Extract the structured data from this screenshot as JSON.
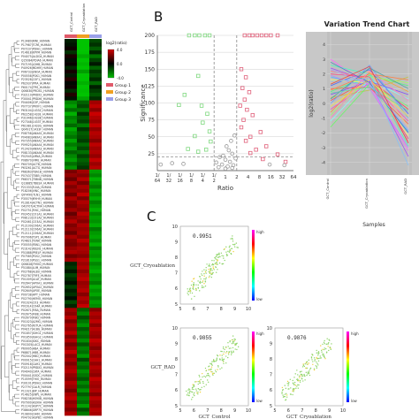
{
  "panel_labels": {
    "b": "B",
    "c": "C"
  },
  "heatmap": {
    "samples": [
      "GCT_Control",
      "GCT_Cryoablation",
      "GCT_RAD"
    ],
    "scale_title": "log2(ratio)",
    "scale_ticks": [
      "4.0",
      "0.0",
      "-4.0"
    ],
    "scale_colors": [
      "#d40000",
      "#000000",
      "#00c000"
    ],
    "groups": [
      {
        "label": "Group 1",
        "color": "#e05a6a"
      },
      {
        "label": "Group 2",
        "color": "#f0a020"
      },
      {
        "label": "Group 3",
        "color": "#9aa0e8"
      }
    ],
    "gene_labels": [
      "P13489|RINI_HUMAN",
      "P17987|TCPA_HUMAN",
      "P07237|PDIA1_HUMAN",
      "P14618|KPYM_HUMAN",
      "P04075|ALDOA_HUMAN",
      "Q15084|PDIA6_HUMAN",
      "P07195|LDHB_HUMAN",
      "P40926|MDHM_HUMAN",
      "P06733|ENOA_HUMAN",
      "P00558|PGK1_HUMAN",
      "P23528|COF1_HUMAN",
      "P62937|PPIA_HUMAN",
      "P60174|TPIS_HUMAN",
      "Q06830|PRDX1_HUMAN",
      "P32119|PRDX2_HUMAN",
      "P30041|PRDX6_HUMAN",
      "P04406|G3P_HUMAN",
      "P07737|PROF1_HUMAN",
      "P63104|1433Z_HUMAN",
      "P62258|1433E_HUMAN",
      "P31946|1433B_HUMAN",
      "P27348|1433T_HUMAN",
      "P61981|1433G_HUMAN",
      "Q04917|1433F_HUMAN",
      "P08758|ANXA5_HUMAN",
      "P04083|ANXA1_HUMAN",
      "P07355|ANXA2_HUMAN",
      "P09525|ANXA4_HUMAN",
      "P12429|ANXA3_HUMAN",
      "P08133|ANXA6_HUMAN",
      "P02545|LMNA_HUMAN",
      "P08670|VIME_HUMAN",
      "P60709|ACTB_HUMAN",
      "P63261|ACTG_HUMAN",
      "P68363|TBA1B_HUMAN",
      "P07437|TBB5_HUMAN",
      "P68371|TBB4B_HUMAN",
      "Q13885|TBB2A_HUMAN",
      "P21333|FLNA_HUMAN",
      "P18206|VINC_HUMAN",
      "Q9Y490|TLN1_HUMAN",
      "P35579|MYH9_HUMAN",
      "P12814|ACTN1_HUMAN",
      "O43707|ACTN4_HUMAN",
      "P02751|FINC_HUMAN",
      "P02452|CO1A1_HUMAN",
      "P08123|CO1A2_HUMAN",
      "P02461|CO3A1_HUMAN",
      "P12109|CO6A1_HUMAN",
      "P12110|CO6A2_HUMAN",
      "P12111|CO6A3_HUMAN",
      "P07996|TSP1_HUMAN",
      "P24821|TENA_HUMAN",
      "P35555|FBN1_HUMAN",
      "P23142|FBLN1_HUMAN",
      "P51888|PRELP_HUMAN",
      "P07585|PGS2_HUMAN",
      "P21810|PGS1_HUMAN",
      "Q06828|FMOD_HUMAN",
      "P51884|LUM_HUMAN",
      "P02768|ALBU_HUMAN",
      "P02787|TRFE_HUMAN",
      "P01009|A1AT_HUMAN",
      "P02647|APOA1_HUMAN",
      "P02652|APOA2_HUMAN",
      "P02649|APOE_HUMAN",
      "P00738|HPT_HUMAN",
      "P02790|HEMO_HUMAN",
      "P01024|CO3_HUMAN",
      "P0C0L4|CO4A_HUMAN",
      "P02671|FIBA_HUMAN",
      "P02675|FIBB_HUMAN",
      "P02679|FIBG_HUMAN",
      "P01023|A2MG_HUMAN",
      "P02765|FETUA_HUMAN",
      "P04217|A1BG_HUMAN",
      "P01857|IGHG1_HUMAN",
      "P01859|IGHG2_HUMAN",
      "P01834|IGKC_HUMAN",
      "P0CG05|LAC2_HUMAN",
      "P69905|HBA_HUMAN",
      "P68871|HBB_HUMAN",
      "P02042|HBD_HUMAN",
      "P00915|CAH1_HUMAN",
      "P00918|CAH2_HUMAN",
      "P32119|PRDX2_HUMAN",
      "P04040|CATA_HUMAN",
      "P00441|SODC_HUMAN",
      "P10599|THIO_HUMAN",
      "P30101|PDIA3_HUMAN",
      "P27797|CALR_HUMAN",
      "P11021|BIP_HUMAN",
      "P14625|ENPL_HUMAN",
      "P08238|HS90B_HUMAN",
      "P07900|HS90A_HUMAN",
      "P11142|HSP7C_HUMAN",
      "P38646|GRP75_HUMAN",
      "P10809|CH60_HUMAN",
      "P04792|HSPB1_HUMAN",
      "P02511|CRYAB_HUMAN"
    ],
    "matrix": [
      [
        -0.5,
        -3.6,
        -1.2
      ],
      [
        -0.3,
        -3.2,
        -0.8
      ],
      [
        0.2,
        -3.8,
        -1.5
      ],
      [
        -0.8,
        -3.4,
        -0.6
      ],
      [
        0.4,
        -2.8,
        -1.9
      ],
      [
        -0.2,
        -3.6,
        -1.1
      ],
      [
        0.1,
        -3.0,
        -0.4
      ],
      [
        -0.6,
        -3.9,
        -1.6
      ],
      [
        0.3,
        -2.6,
        -0.9
      ],
      [
        -0.4,
        -3.3,
        -1.3
      ],
      [
        0.6,
        -3.5,
        -0.7
      ],
      [
        -0.1,
        -2.9,
        -1.7
      ],
      [
        0.2,
        -3.7,
        -0.5
      ],
      [
        -0.7,
        -3.1,
        -1.0
      ],
      [
        0.5,
        -3.4,
        -1.4
      ],
      [
        -0.3,
        -2.7,
        -0.8
      ],
      [
        -2.2,
        -1.6,
        2.4
      ],
      [
        -2.6,
        -1.2,
        2.8
      ],
      [
        -1.8,
        -1.9,
        2.1
      ],
      [
        -2.9,
        -0.8,
        3.0
      ],
      [
        -2.1,
        -1.4,
        2.6
      ],
      [
        -2.4,
        -1.1,
        2.3
      ],
      [
        -1.7,
        -2.0,
        2.9
      ],
      [
        -2.8,
        -0.9,
        2.2
      ],
      [
        -2.3,
        -1.5,
        2.7
      ],
      [
        -1.9,
        -1.3,
        2.5
      ],
      [
        -2.7,
        -1.0,
        2.0
      ],
      [
        -2.0,
        -1.7,
        2.8
      ],
      [
        -2.5,
        -1.2,
        2.4
      ],
      [
        -1.6,
        -1.8,
        2.6
      ],
      [
        -2.2,
        -1.1,
        2.2
      ],
      [
        -2.6,
        -1.6,
        2.9
      ],
      [
        -1.8,
        -1.3,
        2.3
      ],
      [
        -2.4,
        -0.9,
        2.7
      ],
      [
        1.8,
        2.4,
        -2.6
      ],
      [
        2.2,
        2.0,
        -2.2
      ],
      [
        1.6,
        2.7,
        -2.9
      ],
      [
        2.5,
        1.8,
        -2.4
      ],
      [
        1.9,
        2.5,
        -2.0
      ],
      [
        2.3,
        2.2,
        -2.7
      ],
      [
        1.7,
        2.9,
        -2.3
      ],
      [
        2.6,
        1.9,
        -2.8
      ],
      [
        2.0,
        2.6,
        -2.1
      ],
      [
        1.8,
        2.3,
        -2.5
      ],
      [
        2.4,
        2.1,
        -2.9
      ],
      [
        1.5,
        2.8,
        -2.2
      ],
      [
        2.1,
        2.4,
        -2.6
      ],
      [
        2.7,
        2.0,
        -2.4
      ],
      [
        1.9,
        2.6,
        -2.8
      ],
      [
        2.2,
        2.3,
        -2.0
      ],
      [
        1.6,
        2.5,
        -2.5
      ],
      [
        2.5,
        2.1,
        -2.7
      ],
      [
        2.0,
        2.8,
        -2.3
      ],
      [
        1.8,
        2.2,
        -2.9
      ],
      [
        2.3,
        2.6,
        -2.1
      ],
      [
        2.6,
        2.4,
        -2.6
      ],
      [
        1.7,
        2.0,
        -2.4
      ],
      [
        2.4,
        2.7,
        -2.8
      ],
      [
        -0.6,
        2.3,
        -2.2
      ],
      [
        -0.9,
        2.6,
        -2.6
      ],
      [
        -0.4,
        2.1,
        -2.9
      ],
      [
        -1.1,
        2.5,
        -2.3
      ],
      [
        -0.7,
        2.8,
        -2.5
      ],
      [
        -0.3,
        2.2,
        -2.0
      ],
      [
        -1.0,
        2.4,
        -2.8
      ],
      [
        -0.5,
        2.7,
        -2.4
      ],
      [
        -0.8,
        2.0,
        -2.7
      ],
      [
        -0.2,
        2.6,
        -2.1
      ],
      [
        -1.2,
        2.3,
        -2.6
      ],
      [
        -0.6,
        2.9,
        -2.3
      ],
      [
        2.4,
        -1.6,
        2.0
      ],
      [
        2.1,
        -2.2,
        2.6
      ],
      [
        2.7,
        -1.3,
        2.3
      ],
      [
        1.9,
        -1.9,
        2.8
      ],
      [
        2.5,
        -2.4,
        2.1
      ],
      [
        2.2,
        -1.5,
        2.7
      ],
      [
        2.8,
        -2.0,
        2.4
      ],
      [
        2.0,
        -1.7,
        2.2
      ],
      [
        2.6,
        -2.3,
        2.9
      ],
      [
        1.8,
        -1.4,
        2.5
      ],
      [
        2.3,
        -2.1,
        2.0
      ],
      [
        2.9,
        -1.8,
        2.6
      ],
      [
        2.1,
        -2.5,
        2.3
      ],
      [
        2.5,
        -1.2,
        2.8
      ],
      [
        1.9,
        -2.0,
        2.2
      ],
      [
        2.4,
        -1.6,
        2.7
      ],
      [
        2.7,
        -2.3,
        2.4
      ],
      [
        2.2,
        -1.9,
        2.1
      ],
      [
        2.0,
        -1.4,
        2.9
      ],
      [
        2.6,
        -2.2,
        2.5
      ],
      [
        2.3,
        -1.7,
        2.3
      ],
      [
        1.8,
        -2.4,
        2.6
      ],
      [
        2.5,
        -1.5,
        2.0
      ],
      [
        2.8,
        -2.1,
        2.8
      ],
      [
        2.1,
        -1.8,
        2.4
      ],
      [
        2.4,
        -2.6,
        2.2
      ],
      [
        1.9,
        -1.3,
        2.7
      ],
      [
        2.6,
        -2.0,
        2.5
      ]
    ]
  },
  "chart_data": [
    {
      "panel": "B",
      "type": "scatter",
      "xlabel": "Ratio",
      "ylabel": "Significance",
      "x_ticks": [
        "1/64",
        "1/32",
        "1/16",
        "1/8",
        "1/4",
        "1/2",
        "1",
        "2",
        "4",
        "8",
        "16",
        "32",
        "64"
      ],
      "x_log2_range": [
        -6,
        6
      ],
      "ylim": [
        0,
        200
      ],
      "y_ticks": [
        25,
        50,
        75,
        100,
        125,
        150,
        175,
        200
      ],
      "thresholds": {
        "x_log2": [
          -1,
          1
        ],
        "y": 20
      },
      "series": [
        {
          "color": "#7ed87e",
          "shape": "square",
          "points": [
            [
              -3.2,
              200
            ],
            [
              -2.7,
              200
            ],
            [
              -2.3,
              200
            ],
            [
              -1.8,
              200
            ],
            [
              -1.4,
              200
            ],
            [
              -2.4,
              140
            ],
            [
              -3.6,
              112
            ],
            [
              -4.1,
              97
            ],
            [
              -2.1,
              96
            ],
            [
              -1.6,
              84
            ],
            [
              -2.0,
              71
            ],
            [
              -1.4,
              58
            ],
            [
              -2.7,
              51
            ],
            [
              -1.3,
              43
            ],
            [
              -1.7,
              31
            ],
            [
              -2.4,
              28
            ],
            [
              -3.3,
              32
            ]
          ]
        },
        {
          "color": "#e0607a",
          "shape": "square",
          "points": [
            [
              1.7,
              200
            ],
            [
              2.1,
              200
            ],
            [
              2.4,
              200
            ],
            [
              2.8,
              200
            ],
            [
              3.2,
              200
            ],
            [
              3.6,
              200
            ],
            [
              4.0,
              200
            ],
            [
              4.6,
              200
            ],
            [
              1.4,
              150
            ],
            [
              1.8,
              138
            ],
            [
              1.5,
              122
            ],
            [
              2.1,
              116
            ],
            [
              1.7,
              105
            ],
            [
              1.3,
              96
            ],
            [
              1.9,
              90
            ],
            [
              2.4,
              82
            ],
            [
              1.6,
              75
            ],
            [
              1.4,
              64
            ],
            [
              3.1,
              57
            ],
            [
              2.2,
              50
            ],
            [
              1.8,
              44
            ],
            [
              3.6,
              36
            ],
            [
              2.7,
              31
            ],
            [
              2.2,
              26
            ],
            [
              4.6,
              24
            ],
            [
              3.3,
              17
            ],
            [
              5.3,
              13
            ]
          ]
        },
        {
          "color": "#9a9a9a",
          "shape": "circle",
          "points": [
            [
              -0.8,
              12
            ],
            [
              -0.5,
              20
            ],
            [
              -0.3,
              9
            ],
            [
              0.0,
              16
            ],
            [
              0.2,
              6
            ],
            [
              0.4,
              13
            ],
            [
              0.6,
              25
            ],
            [
              0.7,
              8
            ],
            [
              0.9,
              18
            ],
            [
              -0.6,
              5
            ],
            [
              0.3,
              30
            ],
            [
              0.5,
              44
            ],
            [
              0.1,
              36
            ],
            [
              0.8,
              52
            ],
            [
              -0.2,
              22
            ],
            [
              0.6,
              4
            ],
            [
              -5.7,
              9
            ],
            [
              -4.7,
              11
            ],
            [
              -3.7,
              10
            ],
            [
              3.9,
              9
            ],
            [
              5.2,
              8
            ],
            [
              0.0,
              3
            ]
          ]
        }
      ]
    },
    {
      "panel": "trend",
      "type": "line",
      "title": "Variation Trend Chart",
      "xlabel": "Samples",
      "ylabel": "log2(ratio)",
      "categories": [
        "GCT_Control",
        "GCT_Cryoablation",
        "GCT_RAD"
      ],
      "y_ticks": [
        4,
        3,
        2,
        1,
        0,
        -1,
        -2,
        -3,
        -4
      ],
      "ylim": [
        -4.5,
        4.5
      ],
      "series": [
        {
          "color": "#ff4040",
          "values": [
            0.2,
            1.6,
            -0.4
          ]
        },
        {
          "color": "#40c0ff",
          "values": [
            1.8,
            1.2,
            -1.9
          ]
        },
        {
          "color": "#ffa020",
          "values": [
            -0.6,
            2.1,
            0.8
          ]
        },
        {
          "color": "#a040ff",
          "values": [
            2.4,
            1.5,
            -3.6
          ]
        },
        {
          "color": "#40ff80",
          "values": [
            0.8,
            1.9,
            1.2
          ]
        },
        {
          "color": "#ff40c0",
          "values": [
            -0.4,
            1.4,
            -1.2
          ]
        },
        {
          "color": "#4060ff",
          "values": [
            1.2,
            2.3,
            -0.7
          ]
        },
        {
          "color": "#c0c040",
          "values": [
            0.4,
            0.9,
            1.8
          ]
        },
        {
          "color": "#ff8080",
          "values": [
            2.2,
            1.7,
            -2.6
          ]
        },
        {
          "color": "#80ffff",
          "values": [
            -1.2,
            1.6,
            0.3
          ]
        },
        {
          "color": "#ffff60",
          "values": [
            1.6,
            1.4,
            -2.2
          ]
        },
        {
          "color": "#60a0ff",
          "values": [
            0.0,
            2.6,
            -1.0
          ]
        },
        {
          "color": "#ff60ff",
          "values": [
            3.0,
            1.2,
            -3.2
          ]
        },
        {
          "color": "#a0ff60",
          "values": [
            -0.8,
            1.8,
            1.4
          ]
        },
        {
          "color": "#ff6040",
          "values": [
            1.0,
            1.1,
            -1.4
          ]
        },
        {
          "color": "#40ffc0",
          "values": [
            2.6,
            2.0,
            -2.9
          ]
        },
        {
          "color": "#8040ff",
          "values": [
            0.6,
            1.5,
            0.6
          ]
        },
        {
          "color": "#ffc080",
          "values": [
            1.4,
            2.2,
            -1.6
          ]
        },
        {
          "color": "#60ff60",
          "values": [
            -1.6,
            1.3,
            -0.2
          ]
        },
        {
          "color": "#ff4080",
          "values": [
            2.0,
            1.8,
            -2.4
          ]
        },
        {
          "color": "#40a0a0",
          "values": [
            0.3,
            2.4,
            1.0
          ]
        },
        {
          "color": "#c080ff",
          "values": [
            1.9,
            1.0,
            -3.0
          ]
        },
        {
          "color": "#ffe040",
          "values": [
            -0.2,
            1.6,
            -0.9
          ]
        },
        {
          "color": "#4080c0",
          "values": [
            2.8,
            1.4,
            -2.0
          ]
        },
        {
          "color": "#ff8040",
          "values": [
            0.9,
            2.0,
            1.6
          ]
        },
        {
          "color": "#80c0ff",
          "values": [
            1.5,
            1.7,
            -4.2
          ]
        },
        {
          "color": "#ff80c0",
          "values": [
            -1.0,
            2.2,
            0.2
          ]
        },
        {
          "color": "#a0a0ff",
          "values": [
            2.3,
            1.3,
            -1.8
          ]
        },
        {
          "color": "#60e0a0",
          "values": [
            0.7,
            1.1,
            -0.5
          ]
        },
        {
          "color": "#e04040",
          "values": [
            1.3,
            2.5,
            -2.7
          ]
        }
      ]
    },
    {
      "panel": "C",
      "type": "scatter",
      "subplots": [
        {
          "id": "cryo-vs-control",
          "r": "0.9951",
          "ylabel": "GCT_Cryoablation",
          "xlabel": "",
          "xlim": [
            5,
            10
          ],
          "ylim": [
            5,
            10
          ]
        },
        {
          "id": "rad-vs-control",
          "r": "0.9855",
          "ylabel": "GCT_RAD",
          "xlabel": "GCT_Control",
          "xlim": [
            5,
            10
          ],
          "ylim": [
            5,
            10
          ]
        },
        {
          "id": "rad-vs-cryo",
          "r": "0.9876",
          "ylabel": "",
          "xlabel": "GCT_Cryoablation",
          "xlim": [
            5,
            10
          ],
          "ylim": [
            5,
            10
          ]
        }
      ],
      "ticks": [
        5,
        6,
        7,
        8,
        9,
        10
      ],
      "density_scale": {
        "high": "high",
        "low": "low"
      }
    }
  ]
}
